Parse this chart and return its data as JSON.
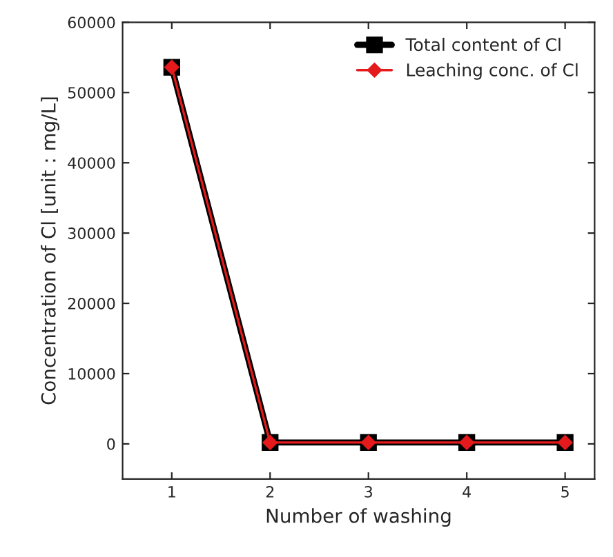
{
  "chart_data": {
    "type": "line",
    "xlabel": "Number of washing",
    "ylabel": "Concentration of Cl [unit : mg/L]",
    "x": [
      1,
      2,
      3,
      4,
      5
    ],
    "series": [
      {
        "name": "Total content of Cl",
        "color": "#000000",
        "marker": "square",
        "values": [
          53600,
          200,
          200,
          200,
          200
        ]
      },
      {
        "name": "Leaching conc. of Cl",
        "color": "#e41a1c",
        "marker": "diamond",
        "values": [
          53600,
          200,
          200,
          200,
          200
        ]
      }
    ],
    "xlim": [
      0.5,
      5.3
    ],
    "xticks": [
      1,
      2,
      3,
      4,
      5
    ],
    "ylim": [
      -5000,
      60000
    ],
    "yticks": [
      0,
      10000,
      20000,
      30000,
      40000,
      50000,
      60000
    ],
    "grid": false,
    "legend": "top right",
    "line_style": "solid"
  }
}
